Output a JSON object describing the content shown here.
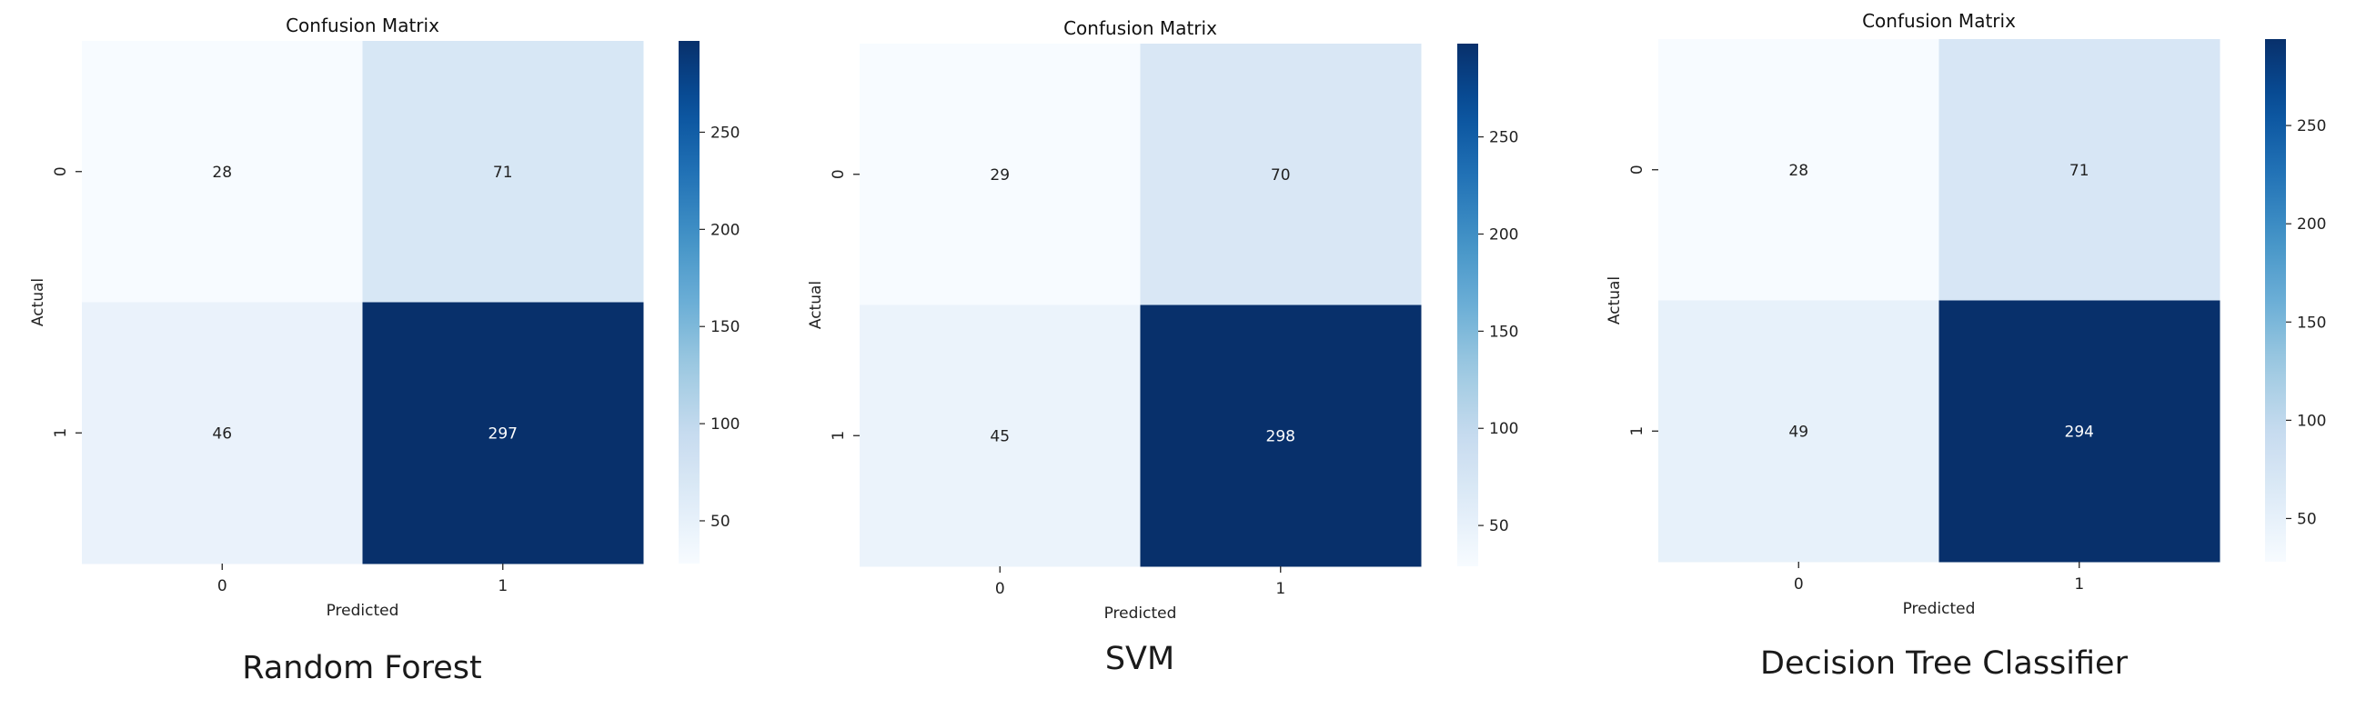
{
  "chart_data": [
    {
      "type": "heatmap",
      "title": "Confusion Matrix",
      "xlabel": "Predicted",
      "ylabel": "Actual",
      "x_categories": [
        "0",
        "1"
      ],
      "y_categories": [
        "0",
        "1"
      ],
      "values": [
        [
          28,
          71
        ],
        [
          46,
          297
        ]
      ],
      "colormap": "Blues",
      "colorbar_range": [
        28,
        297
      ],
      "colorbar_ticks": [
        50,
        100,
        150,
        200,
        250
      ],
      "caption": "Random Forest"
    },
    {
      "type": "heatmap",
      "title": "Confusion Matrix",
      "xlabel": "Predicted",
      "ylabel": "Actual",
      "x_categories": [
        "0",
        "1"
      ],
      "y_categories": [
        "0",
        "1"
      ],
      "values": [
        [
          29,
          70
        ],
        [
          45,
          298
        ]
      ],
      "colormap": "Blues",
      "colorbar_range": [
        29,
        298
      ],
      "colorbar_ticks": [
        50,
        100,
        150,
        200,
        250
      ],
      "caption": "SVM"
    },
    {
      "type": "heatmap",
      "title": "Confusion Matrix",
      "xlabel": "Predicted",
      "ylabel": "Actual",
      "x_categories": [
        "0",
        "1"
      ],
      "y_categories": [
        "0",
        "1"
      ],
      "values": [
        [
          28,
          71
        ],
        [
          49,
          294
        ]
      ],
      "colormap": "Blues",
      "colorbar_range": [
        28,
        294
      ],
      "colorbar_ticks": [
        50,
        100,
        150,
        200,
        250
      ],
      "caption": "Decision Tree Classifier"
    }
  ]
}
